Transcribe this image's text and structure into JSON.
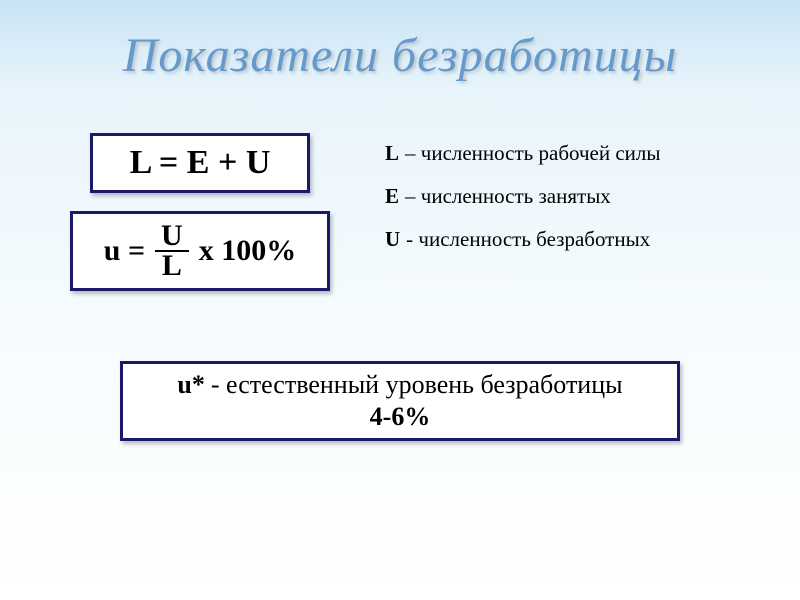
{
  "title": "Показатели безработицы",
  "formula1": "L = E + U",
  "formula2": {
    "lhs": "u =",
    "frac_num": "U",
    "frac_den": "L",
    "rhs": "x 100%"
  },
  "definitions": {
    "L": {
      "var": "L",
      "text": "– численность рабочей силы"
    },
    "E": {
      "var": "E",
      "text": "– численность занятых"
    },
    "U": {
      "var": "U",
      "text": "- численность безработных"
    }
  },
  "natural": {
    "ustar": "u*",
    "desc": "- естественный уровень безработицы",
    "range": "4-6%"
  },
  "style": {
    "title_color": "#6699cc",
    "border_color": "#1a1a66",
    "bg_gradient_top": "#c8e4f5",
    "bg_gradient_bottom": "#ffffff",
    "title_fontsize": 48,
    "formula_fontsize": 34,
    "def_fontsize": 21,
    "natural_fontsize": 26
  }
}
